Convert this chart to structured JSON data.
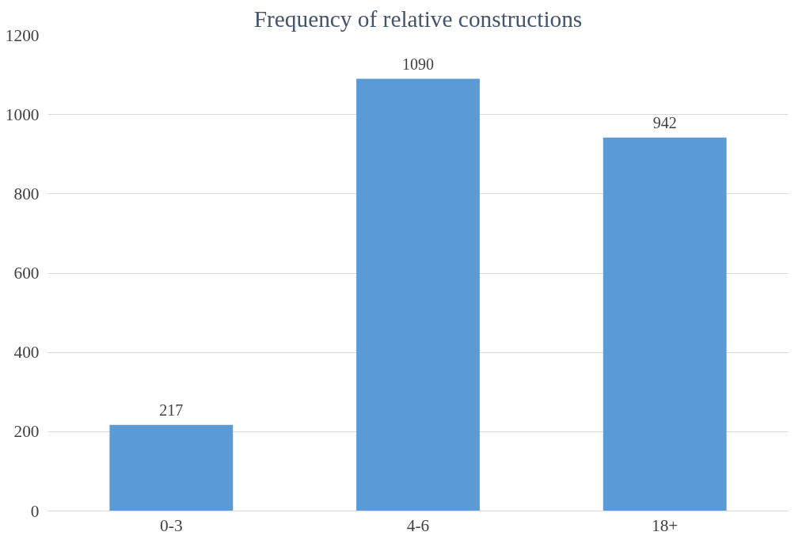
{
  "chart_data": {
    "type": "bar",
    "title": "Frequency of relative constructions",
    "categories": [
      "0-3",
      "4-6",
      "18+"
    ],
    "values": [
      217,
      1090,
      942
    ],
    "color": "#5b9bd5",
    "ylim": [
      0,
      1200
    ],
    "yticks": [
      0,
      200,
      400,
      600,
      800,
      1000,
      1200
    ],
    "grid": "y",
    "data_labels": true
  }
}
